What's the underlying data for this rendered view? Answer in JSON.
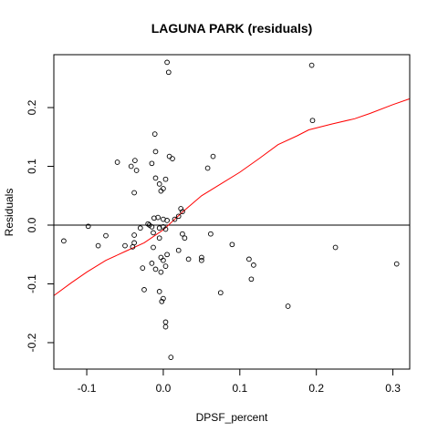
{
  "chart_data": {
    "type": "scatter",
    "title": "LAGUNA PARK (residuals)",
    "xlabel": "DPSF_percent",
    "ylabel": "Residuals",
    "xlim": [
      -0.143,
      0.322
    ],
    "ylim": [
      -0.245,
      0.29
    ],
    "x_ticks": [
      -0.1,
      0.0,
      0.1,
      0.2,
      0.3
    ],
    "x_tick_labels": [
      "-0.1",
      "0.0",
      "0.1",
      "0.2",
      "0.3"
    ],
    "y_ticks": [
      -0.2,
      -0.1,
      0.0,
      0.1,
      0.2
    ],
    "y_tick_labels": [
      "-0.2",
      "-0.1",
      "0.0",
      "0.1",
      "0.2"
    ],
    "reference_line_y": 0.0,
    "colors": {
      "points": "#000000",
      "smooth": "#ff0000",
      "reference": "#000000"
    },
    "points": [
      [
        0.005,
        0.277
      ],
      [
        0.007,
        0.26
      ],
      [
        0.194,
        0.272
      ],
      [
        0.195,
        0.178
      ],
      [
        -0.011,
        0.155
      ],
      [
        -0.037,
        0.11
      ],
      [
        -0.06,
        0.107
      ],
      [
        -0.042,
        0.1
      ],
      [
        -0.035,
        0.093
      ],
      [
        -0.015,
        0.105
      ],
      [
        -0.01,
        0.125
      ],
      [
        0.008,
        0.117
      ],
      [
        0.012,
        0.113
      ],
      [
        0.065,
        0.117
      ],
      [
        0.058,
        0.097
      ],
      [
        -0.01,
        0.08
      ],
      [
        -0.005,
        0.07
      ],
      [
        0.003,
        0.078
      ],
      [
        0.0,
        0.062
      ],
      [
        -0.003,
        0.058
      ],
      [
        -0.038,
        0.055
      ],
      [
        0.023,
        0.028
      ],
      [
        0.025,
        0.023
      ],
      [
        -0.012,
        0.012
      ],
      [
        -0.007,
        0.013
      ],
      [
        0.0,
        0.01
      ],
      [
        0.005,
        0.008
      ],
      [
        0.015,
        0.01
      ],
      [
        0.02,
        0.015
      ],
      [
        -0.02,
        0.002
      ],
      [
        -0.018,
        0.0
      ],
      [
        -0.015,
        -0.003
      ],
      [
        -0.098,
        -0.002
      ],
      [
        -0.03,
        -0.005
      ],
      [
        -0.005,
        -0.005
      ],
      [
        0.0,
        -0.003
      ],
      [
        0.003,
        -0.007
      ],
      [
        -0.013,
        -0.013
      ],
      [
        -0.038,
        -0.017
      ],
      [
        -0.075,
        -0.018
      ],
      [
        -0.005,
        -0.022
      ],
      [
        0.025,
        -0.015
      ],
      [
        0.028,
        -0.022
      ],
      [
        0.062,
        -0.015
      ],
      [
        -0.13,
        -0.027
      ],
      [
        -0.085,
        -0.035
      ],
      [
        -0.038,
        -0.03
      ],
      [
        -0.05,
        -0.035
      ],
      [
        -0.04,
        -0.037
      ],
      [
        -0.013,
        -0.038
      ],
      [
        0.02,
        -0.043
      ],
      [
        0.09,
        -0.033
      ],
      [
        0.118,
        -0.068
      ],
      [
        0.112,
        -0.058
      ],
      [
        0.225,
        -0.038
      ],
      [
        0.05,
        -0.055
      ],
      [
        0.05,
        -0.06
      ],
      [
        0.033,
        -0.058
      ],
      [
        0.005,
        -0.05
      ],
      [
        -0.003,
        -0.055
      ],
      [
        0.0,
        -0.06
      ],
      [
        0.003,
        -0.07
      ],
      [
        -0.015,
        -0.065
      ],
      [
        -0.01,
        -0.075
      ],
      [
        -0.027,
        -0.073
      ],
      [
        -0.003,
        -0.08
      ],
      [
        0.115,
        -0.092
      ],
      [
        0.305,
        -0.066
      ],
      [
        -0.025,
        -0.11
      ],
      [
        -0.005,
        -0.113
      ],
      [
        0.0,
        -0.125
      ],
      [
        -0.002,
        -0.13
      ],
      [
        0.075,
        -0.115
      ],
      [
        0.163,
        -0.138
      ],
      [
        0.003,
        -0.165
      ],
      [
        0.003,
        -0.173
      ],
      [
        0.01,
        -0.225
      ]
    ],
    "smooth_line": [
      [
        -0.143,
        -0.12
      ],
      [
        -0.12,
        -0.098
      ],
      [
        -0.1,
        -0.08
      ],
      [
        -0.075,
        -0.06
      ],
      [
        -0.05,
        -0.045
      ],
      [
        -0.025,
        -0.03
      ],
      [
        0.0,
        -0.008
      ],
      [
        0.025,
        0.022
      ],
      [
        0.05,
        0.05
      ],
      [
        0.075,
        0.07
      ],
      [
        0.1,
        0.09
      ],
      [
        0.125,
        0.113
      ],
      [
        0.15,
        0.137
      ],
      [
        0.175,
        0.152
      ],
      [
        0.19,
        0.162
      ],
      [
        0.22,
        0.172
      ],
      [
        0.25,
        0.181
      ],
      [
        0.27,
        0.19
      ],
      [
        0.3,
        0.205
      ],
      [
        0.322,
        0.215
      ]
    ]
  }
}
